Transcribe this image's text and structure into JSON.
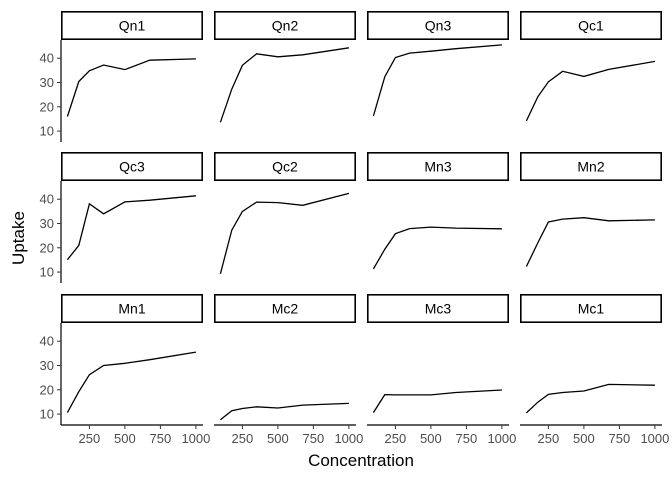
{
  "chart_data": {
    "type": "line",
    "xlabel": "Concentration",
    "ylabel": "Uptake",
    "xlim": [
      50,
      1050
    ],
    "ylim": [
      5.5,
      47.5
    ],
    "x_ticks": [
      250,
      500,
      750,
      1000
    ],
    "y_ticks": [
      10,
      20,
      30,
      40
    ],
    "grid": false,
    "x": [
      95,
      175,
      250,
      350,
      500,
      675,
      1000
    ],
    "panels": [
      {
        "name": "Qn1",
        "values": [
          16.0,
          30.4,
          34.8,
          37.2,
          35.3,
          39.2,
          39.7
        ]
      },
      {
        "name": "Qn2",
        "values": [
          13.6,
          27.3,
          37.1,
          41.8,
          40.6,
          41.4,
          44.3
        ]
      },
      {
        "name": "Qn3",
        "values": [
          16.2,
          32.4,
          40.3,
          42.1,
          42.9,
          43.9,
          45.5
        ]
      },
      {
        "name": "Qc1",
        "values": [
          14.2,
          24.1,
          30.3,
          34.6,
          32.5,
          35.4,
          38.7
        ]
      },
      {
        "name": "Qc3",
        "values": [
          15.1,
          21.0,
          38.1,
          34.0,
          38.9,
          39.6,
          41.4
        ]
      },
      {
        "name": "Qc2",
        "values": [
          9.3,
          27.3,
          35.0,
          38.8,
          38.6,
          37.5,
          42.4
        ]
      },
      {
        "name": "Mn3",
        "values": [
          11.3,
          19.4,
          25.8,
          27.9,
          28.5,
          28.1,
          27.8
        ]
      },
      {
        "name": "Mn2",
        "values": [
          12.3,
          22.0,
          30.6,
          31.8,
          32.4,
          31.1,
          31.5
        ]
      },
      {
        "name": "Mn1",
        "values": [
          10.6,
          19.2,
          26.2,
          30.0,
          30.9,
          32.4,
          35.5
        ]
      },
      {
        "name": "Mc2",
        "values": [
          7.7,
          11.4,
          12.3,
          13.0,
          12.5,
          13.7,
          14.4
        ]
      },
      {
        "name": "Mc3",
        "values": [
          10.6,
          18.0,
          17.9,
          17.9,
          17.9,
          18.9,
          19.9
        ]
      },
      {
        "name": "Mc1",
        "values": [
          10.5,
          14.9,
          18.1,
          18.9,
          19.5,
          22.2,
          21.9
        ]
      }
    ]
  }
}
